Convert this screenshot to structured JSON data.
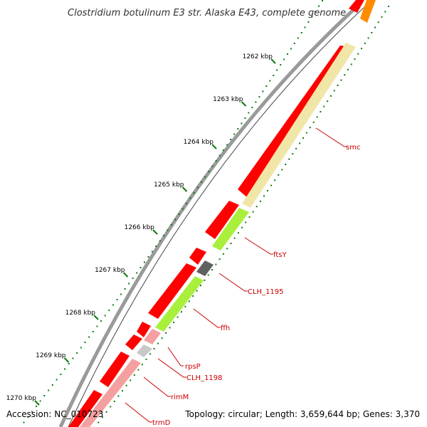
{
  "title": "Clostridium botulinum E3 str. Alaska E43, complete genome",
  "footer": {
    "accession": "Accession: NC_010723",
    "summary": "Topology: circular; Length: 3,659,644 bp; Genes: 3,370"
  },
  "ticks": [
    "1262 kbp",
    "1263 kbp",
    "1264 kbp",
    "1265 kbp",
    "1266 kbp",
    "1267 kbp",
    "1268 kbp",
    "1269 kbp",
    "1270 kbp"
  ],
  "genes": [
    {
      "name": "smc"
    },
    {
      "name": "ftsY"
    },
    {
      "name": "CLH_1195"
    },
    {
      "name": "ffh"
    },
    {
      "name": "rpsP"
    },
    {
      "name": "CLH_1198"
    },
    {
      "name": "rimM"
    },
    {
      "name": "trmD"
    }
  ],
  "colors": {
    "label_red": "#cc0000",
    "feature_red": "#ff0000",
    "cog_yellow": "#f0e6a8",
    "cog_green": "#a8f03c",
    "cog_darkgray": "#606060",
    "cog_pink": "#f4a0a0",
    "cog_lightgray": "#c8c8c8",
    "cog_orange": "#ff8c00",
    "gc_green": "#0a7a0a"
  }
}
